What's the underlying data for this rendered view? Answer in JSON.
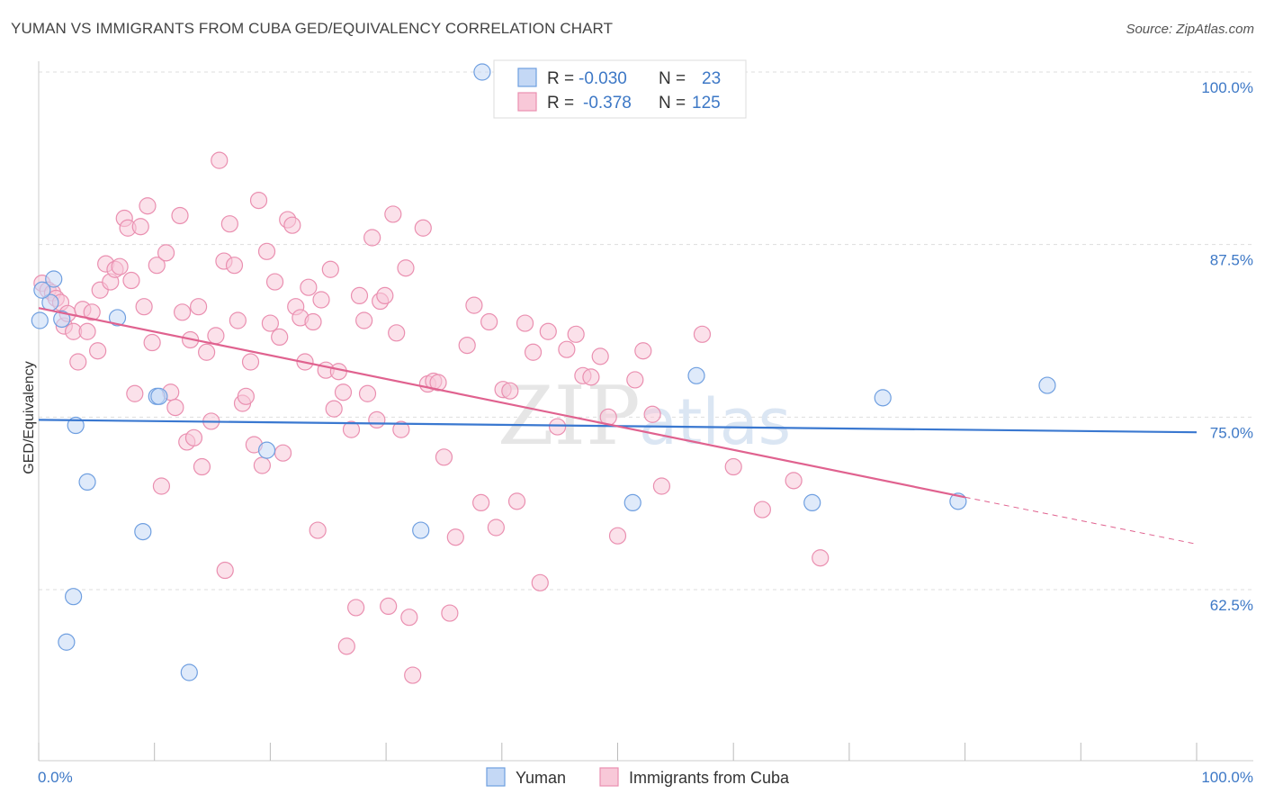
{
  "title": "YUMAN VS IMMIGRANTS FROM CUBA GED/EQUIVALENCY CORRELATION CHART",
  "source": "Source: ZipAtlas.com",
  "watermark": {
    "zip": "ZIP",
    "atlas": "atlas"
  },
  "colors": {
    "blue": "#3a78d0",
    "blue_fill": "#c4d8f5",
    "blue_stroke": "#6f9fe0",
    "pink": "#e0628f",
    "pink_fill": "#f8c8d8",
    "pink_stroke": "#ea8fb0",
    "grid": "#dddddd",
    "tick_text": "#3d78c6"
  },
  "legend": {
    "rows": [
      {
        "r_label": "R =",
        "r_value": "-0.030",
        "n_label": "N =",
        "n_value": "23"
      },
      {
        "r_label": "R =",
        "r_value": "-0.378",
        "n_label": "N =",
        "n_value": "125"
      }
    ]
  },
  "bottom_legend": [
    "Yuman",
    "Immigrants from Cuba"
  ],
  "chart_data": {
    "type": "scatter",
    "title": "YUMAN VS IMMIGRANTS FROM CUBA GED/EQUIVALENCY CORRELATION CHART",
    "xlabel": "",
    "ylabel": "GED/Equivalency",
    "xlim": [
      0,
      100
    ],
    "ylim": [
      52,
      101.5
    ],
    "x_tick_labels": [
      "0.0%",
      "100.0%"
    ],
    "y_ticks": [
      62.5,
      75.0,
      87.5,
      100.0
    ],
    "y_tick_labels": [
      "62.5%",
      "75.0%",
      "87.5%",
      "100.0%"
    ],
    "grid": "horizontal dashed",
    "legend_position": "top-center",
    "series": [
      {
        "name": "Yuman",
        "color": "#3a78d0",
        "r": -0.03,
        "n": 23,
        "trend": {
          "x": [
            0,
            100
          ],
          "y": [
            74.8,
            73.9
          ]
        },
        "points": [
          [
            0.1,
            82.0
          ],
          [
            1.0,
            83.3
          ],
          [
            1.3,
            85.0
          ],
          [
            2.0,
            82.1
          ],
          [
            3.2,
            74.4
          ],
          [
            4.2,
            70.3
          ],
          [
            6.8,
            82.2
          ],
          [
            9.0,
            66.7
          ],
          [
            10.2,
            76.5
          ],
          [
            10.4,
            76.5
          ],
          [
            3.0,
            62.0
          ],
          [
            2.4,
            58.7
          ],
          [
            13.0,
            56.5
          ],
          [
            19.7,
            72.6
          ],
          [
            33.0,
            66.8
          ],
          [
            38.3,
            100.0
          ],
          [
            51.3,
            68.8
          ],
          [
            56.8,
            78.0
          ],
          [
            66.8,
            68.8
          ],
          [
            72.9,
            76.4
          ],
          [
            79.4,
            68.9
          ],
          [
            87.1,
            77.3
          ],
          [
            0.3,
            84.2
          ]
        ]
      },
      {
        "name": "Immigrants from Cuba",
        "color": "#e0628f",
        "r": -0.378,
        "n": 125,
        "trend": {
          "x": [
            0,
            80
          ],
          "y": [
            82.9,
            69.2
          ]
        },
        "trend_extension": {
          "x": [
            80,
            100
          ],
          "y": [
            69.2,
            65.8
          ]
        },
        "points": [
          [
            0.3,
            84.7
          ],
          [
            0.8,
            84.2
          ],
          [
            1.2,
            84.0
          ],
          [
            1.5,
            83.6
          ],
          [
            1.9,
            83.3
          ],
          [
            2.2,
            81.6
          ],
          [
            2.5,
            82.5
          ],
          [
            3.0,
            81.2
          ],
          [
            3.4,
            79.0
          ],
          [
            3.8,
            82.8
          ],
          [
            4.2,
            81.2
          ],
          [
            4.6,
            82.6
          ],
          [
            5.1,
            79.8
          ],
          [
            5.3,
            84.2
          ],
          [
            5.8,
            86.1
          ],
          [
            6.2,
            84.8
          ],
          [
            6.6,
            85.7
          ],
          [
            7.0,
            85.9
          ],
          [
            7.4,
            89.4
          ],
          [
            7.7,
            88.7
          ],
          [
            8.0,
            84.9
          ],
          [
            8.3,
            76.7
          ],
          [
            8.8,
            88.8
          ],
          [
            9.1,
            83.0
          ],
          [
            9.4,
            90.3
          ],
          [
            9.8,
            80.4
          ],
          [
            10.2,
            86.0
          ],
          [
            10.6,
            70.0
          ],
          [
            11.0,
            86.9
          ],
          [
            11.4,
            76.8
          ],
          [
            11.8,
            75.7
          ],
          [
            12.2,
            89.6
          ],
          [
            12.4,
            82.6
          ],
          [
            12.8,
            73.2
          ],
          [
            13.1,
            80.6
          ],
          [
            13.4,
            73.5
          ],
          [
            13.8,
            83.0
          ],
          [
            14.1,
            71.4
          ],
          [
            14.5,
            79.7
          ],
          [
            14.9,
            74.7
          ],
          [
            15.3,
            80.9
          ],
          [
            15.6,
            93.6
          ],
          [
            16.0,
            86.3
          ],
          [
            16.1,
            63.9
          ],
          [
            16.5,
            89.0
          ],
          [
            16.9,
            86.0
          ],
          [
            17.2,
            82.0
          ],
          [
            17.6,
            76.0
          ],
          [
            17.9,
            76.5
          ],
          [
            18.3,
            79.0
          ],
          [
            18.6,
            73.0
          ],
          [
            19.0,
            90.7
          ],
          [
            19.3,
            71.5
          ],
          [
            19.7,
            87.0
          ],
          [
            20.0,
            81.8
          ],
          [
            20.4,
            84.8
          ],
          [
            20.8,
            80.8
          ],
          [
            21.1,
            72.4
          ],
          [
            21.5,
            89.3
          ],
          [
            21.9,
            88.9
          ],
          [
            22.2,
            83.0
          ],
          [
            22.6,
            82.2
          ],
          [
            23.0,
            79.0
          ],
          [
            23.3,
            84.4
          ],
          [
            23.7,
            81.9
          ],
          [
            24.1,
            66.8
          ],
          [
            24.4,
            83.5
          ],
          [
            24.8,
            78.4
          ],
          [
            25.2,
            85.7
          ],
          [
            25.5,
            75.6
          ],
          [
            25.9,
            78.3
          ],
          [
            26.3,
            76.8
          ],
          [
            26.6,
            58.4
          ],
          [
            27.0,
            74.1
          ],
          [
            27.4,
            61.2
          ],
          [
            27.7,
            83.8
          ],
          [
            28.1,
            82.0
          ],
          [
            28.4,
            76.7
          ],
          [
            28.8,
            88.0
          ],
          [
            29.2,
            74.8
          ],
          [
            29.5,
            83.4
          ],
          [
            29.9,
            83.8
          ],
          [
            30.2,
            61.3
          ],
          [
            30.6,
            89.7
          ],
          [
            30.9,
            81.1
          ],
          [
            31.3,
            74.1
          ],
          [
            31.7,
            85.8
          ],
          [
            32.0,
            60.5
          ],
          [
            32.3,
            56.3
          ],
          [
            33.2,
            88.7
          ],
          [
            33.6,
            77.4
          ],
          [
            34.1,
            77.6
          ],
          [
            34.5,
            77.5
          ],
          [
            35.0,
            72.1
          ],
          [
            35.5,
            60.8
          ],
          [
            36.0,
            66.3
          ],
          [
            37.0,
            80.2
          ],
          [
            37.6,
            83.1
          ],
          [
            38.2,
            68.8
          ],
          [
            38.9,
            81.9
          ],
          [
            39.5,
            67.0
          ],
          [
            40.1,
            77.0
          ],
          [
            40.7,
            76.9
          ],
          [
            41.3,
            68.9
          ],
          [
            42.0,
            81.8
          ],
          [
            42.7,
            79.7
          ],
          [
            43.3,
            63.0
          ],
          [
            44.0,
            81.2
          ],
          [
            44.8,
            74.3
          ],
          [
            45.6,
            79.9
          ],
          [
            46.4,
            81.0
          ],
          [
            47.0,
            78.0
          ],
          [
            47.7,
            77.9
          ],
          [
            48.5,
            79.4
          ],
          [
            49.2,
            75.0
          ],
          [
            50.0,
            66.4
          ],
          [
            51.5,
            77.7
          ],
          [
            52.2,
            79.8
          ],
          [
            53.0,
            75.2
          ],
          [
            53.8,
            70.0
          ],
          [
            57.3,
            81.0
          ],
          [
            60.0,
            71.4
          ],
          [
            62.5,
            68.3
          ],
          [
            65.2,
            70.4
          ],
          [
            67.5,
            64.8
          ]
        ]
      }
    ]
  }
}
